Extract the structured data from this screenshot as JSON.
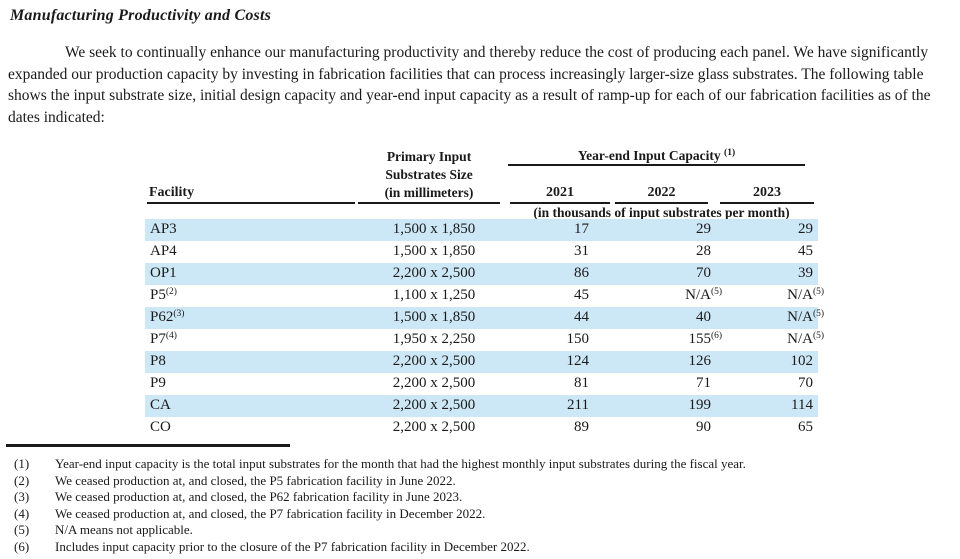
{
  "page": {
    "title": "Manufacturing Productivity and Costs",
    "intro": "We seek to continually enhance our manufacturing productivity and thereby reduce the cost of producing each panel. We have significantly expanded our production capacity by investing in fabrication facilities that can process increasingly larger-size glass substrates. The following table shows the input substrate size, initial design capacity and year-end input capacity as a result of ramp-up for each of our fabrication facilities as of the dates indicated:"
  },
  "table": {
    "facility_header": "Facility",
    "size_header_line1": "Primary Input",
    "size_header_line2": "Substrates Size",
    "size_header_line3": "(in millimeters)",
    "capacity_group_header": "Year-end Input Capacity",
    "capacity_group_footnote": "(1)",
    "year_headers": [
      "2021",
      "2022",
      "2023"
    ],
    "unit_note": "(in thousands of input substrates per month)",
    "rows": [
      {
        "facility": "AP3",
        "size": "1,500 x 1,850",
        "c2021": "17",
        "c2022": "29",
        "c2023": "29",
        "shaded": true
      },
      {
        "facility": "AP4",
        "size": "1,500 x 1,850",
        "c2021": "31",
        "c2022": "28",
        "c2023": "45",
        "shaded": false
      },
      {
        "facility": "OP1",
        "size": "2,200 x 2,500",
        "c2021": "86",
        "c2022": "70",
        "c2023": "39",
        "shaded": true
      },
      {
        "facility": "P5",
        "facility_fn": "(2)",
        "size": "1,100 x 1,250",
        "c2021": "45",
        "c2022": "N/A",
        "fn2022": "(5)",
        "c2023": "N/A",
        "fn2023": "(5)",
        "shaded": false
      },
      {
        "facility": "P62",
        "facility_fn": "(3)",
        "size": "1,500 x 1,850",
        "c2021": "44",
        "c2022": "40",
        "c2023": "N/A",
        "fn2023": "(5)",
        "shaded": true
      },
      {
        "facility": "P7",
        "facility_fn": "(4)",
        "size": "1,950 x 2,250",
        "c2021": "150",
        "c2022": "155",
        "fn2022": "(6)",
        "c2023": "N/A",
        "fn2023": "(5)",
        "shaded": false
      },
      {
        "facility": "P8",
        "size": "2,200 x 2,500",
        "c2021": "124",
        "c2022": "126",
        "c2023": "102",
        "shaded": true
      },
      {
        "facility": "P9",
        "size": "2,200 x 2,500",
        "c2021": "81",
        "c2022": "71",
        "c2023": "70",
        "shaded": false
      },
      {
        "facility": "CA",
        "size": "2,200 x 2,500",
        "c2021": "211",
        "c2022": "199",
        "c2023": "114",
        "shaded": true
      },
      {
        "facility": "CO",
        "size": "2,200 x 2,500",
        "c2021": "89",
        "c2022": "90",
        "c2023": "65",
        "shaded": false
      }
    ]
  },
  "footnotes": [
    {
      "marker": "(1)",
      "text": "Year-end input capacity is the total input substrates for the month that had the highest monthly input substrates during the fiscal year."
    },
    {
      "marker": "(2)",
      "text": "We ceased production at, and closed, the P5 fabrication facility in June 2022."
    },
    {
      "marker": "(3)",
      "text": "We ceased production at, and closed, the P62 fabrication facility in June 2023."
    },
    {
      "marker": "(4)",
      "text": "We ceased production at, and closed, the P7 fabrication facility in December 2022."
    },
    {
      "marker": "(5)",
      "text": "N/A means not applicable."
    },
    {
      "marker": "(6)",
      "text": "Includes input capacity prior to the closure of the P7 fabrication facility in December 2022."
    }
  ],
  "colors": {
    "row_shade": "#cce8f7",
    "text": "#1a1a1a"
  }
}
